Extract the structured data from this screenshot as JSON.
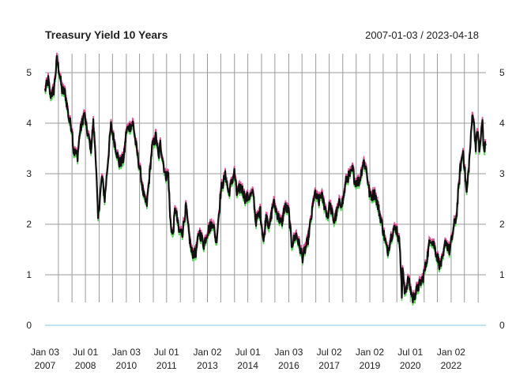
{
  "chart_data": {
    "type": "line",
    "title": "Treasury Yield 10 Years",
    "date_range": "2007-01-03 / 2023-04-18",
    "xlabel": "",
    "ylabel": "",
    "x_range": [
      "2007-01-03",
      "2023-04-18"
    ],
    "ylim": [
      -0.3,
      5.35
    ],
    "y_ticks": [
      0,
      1,
      2,
      3,
      4,
      5
    ],
    "x_ticks": [
      {
        "date": "2007-01-03",
        "line1": "Jan 03",
        "line2": "2007"
      },
      {
        "date": "2008-07-01",
        "line1": "Jul 01",
        "line2": "2008"
      },
      {
        "date": "2010-01-04",
        "line1": "Jan 03",
        "line2": "2010"
      },
      {
        "date": "2011-07-01",
        "line1": "Jul 01",
        "line2": "2011"
      },
      {
        "date": "2013-01-02",
        "line1": "Jan 02",
        "line2": "2013"
      },
      {
        "date": "2014-07-01",
        "line1": "Jul 01",
        "line2": "2014"
      },
      {
        "date": "2016-01-04",
        "line1": "Jan 03",
        "line2": "2016"
      },
      {
        "date": "2017-07-03",
        "line1": "Jul 02",
        "line2": "2017"
      },
      {
        "date": "2019-01-02",
        "line1": "Jan 02",
        "line2": "2019"
      },
      {
        "date": "2020-07-01",
        "line1": "Jul 01",
        "line2": "2020"
      },
      {
        "date": "2022-01-03",
        "line1": "Jan 02",
        "line2": "2022"
      }
    ],
    "grid": true,
    "grid_dates": [
      "2007-07-02",
      "2008-01-02",
      "2008-07-01",
      "2009-01-02",
      "2009-07-01",
      "2010-01-04",
      "2010-07-01",
      "2011-01-03",
      "2011-07-01",
      "2012-01-03",
      "2012-07-02",
      "2013-01-02",
      "2013-07-01",
      "2014-01-02",
      "2014-07-01",
      "2015-01-02",
      "2015-07-01",
      "2016-01-04",
      "2016-07-01",
      "2017-01-03",
      "2017-07-03",
      "2018-01-02",
      "2018-07-02",
      "2019-01-02",
      "2019-07-01",
      "2020-01-02",
      "2020-07-01",
      "2021-01-04",
      "2021-07-01",
      "2022-01-03",
      "2022-07-01",
      "2023-01-03"
    ],
    "series": [
      {
        "color": "#111111",
        "high_color": "#e0529a",
        "low_color": "#5cd65c",
        "points": [
          [
            "2007-01-03",
            4.65
          ],
          [
            "2007-02-15",
            4.85
          ],
          [
            "2007-03-15",
            4.55
          ],
          [
            "2007-05-01",
            4.65
          ],
          [
            "2007-06-12",
            5.25
          ],
          [
            "2007-07-10",
            5.05
          ],
          [
            "2007-08-20",
            4.65
          ],
          [
            "2007-10-01",
            4.6
          ],
          [
            "2007-11-26",
            4.05
          ],
          [
            "2008-01-02",
            3.9
          ],
          [
            "2008-01-23",
            3.45
          ],
          [
            "2008-03-17",
            3.35
          ],
          [
            "2008-04-15",
            3.8
          ],
          [
            "2008-06-16",
            4.2
          ],
          [
            "2008-07-15",
            3.9
          ],
          [
            "2008-09-15",
            3.5
          ],
          [
            "2008-10-15",
            4.0
          ],
          [
            "2008-11-15",
            3.4
          ],
          [
            "2008-12-18",
            2.1
          ],
          [
            "2009-01-10",
            2.5
          ],
          [
            "2009-02-10",
            2.95
          ],
          [
            "2009-03-18",
            2.5
          ],
          [
            "2009-06-10",
            3.95
          ],
          [
            "2009-08-01",
            3.6
          ],
          [
            "2009-10-01",
            3.2
          ],
          [
            "2009-12-01",
            3.3
          ],
          [
            "2010-01-04",
            3.85
          ],
          [
            "2010-04-05",
            4.0
          ],
          [
            "2010-05-15",
            3.55
          ],
          [
            "2010-07-15",
            3.0
          ],
          [
            "2010-08-31",
            2.5
          ],
          [
            "2010-10-08",
            2.4
          ],
          [
            "2010-12-15",
            3.5
          ],
          [
            "2011-02-08",
            3.75
          ],
          [
            "2011-03-15",
            3.3
          ],
          [
            "2011-04-08",
            3.6
          ],
          [
            "2011-06-15",
            2.95
          ],
          [
            "2011-07-25",
            3.0
          ],
          [
            "2011-08-18",
            2.1
          ],
          [
            "2011-09-22",
            1.75
          ],
          [
            "2011-10-27",
            2.35
          ],
          [
            "2011-12-15",
            1.85
          ],
          [
            "2012-02-01",
            1.85
          ],
          [
            "2012-03-19",
            2.35
          ],
          [
            "2012-04-15",
            1.95
          ],
          [
            "2012-06-01",
            1.45
          ],
          [
            "2012-07-24",
            1.4
          ],
          [
            "2012-09-15",
            1.85
          ],
          [
            "2012-11-15",
            1.6
          ],
          [
            "2013-01-02",
            1.85
          ],
          [
            "2013-03-15",
            2.05
          ],
          [
            "2013-05-02",
            1.65
          ],
          [
            "2013-07-05",
            2.7
          ],
          [
            "2013-09-05",
            2.98
          ],
          [
            "2013-10-15",
            2.6
          ],
          [
            "2013-12-31",
            3.03
          ],
          [
            "2014-02-03",
            2.6
          ],
          [
            "2014-04-01",
            2.75
          ],
          [
            "2014-06-01",
            2.5
          ],
          [
            "2014-07-15",
            2.55
          ],
          [
            "2014-09-15",
            2.6
          ],
          [
            "2014-10-15",
            2.05
          ],
          [
            "2014-12-15",
            2.25
          ],
          [
            "2015-01-30",
            1.65
          ],
          [
            "2015-03-10",
            2.25
          ],
          [
            "2015-04-15",
            1.9
          ],
          [
            "2015-06-10",
            2.45
          ],
          [
            "2015-08-15",
            2.15
          ],
          [
            "2015-10-01",
            2.0
          ],
          [
            "2015-11-10",
            2.35
          ],
          [
            "2016-01-04",
            2.25
          ],
          [
            "2016-02-11",
            1.6
          ],
          [
            "2016-04-15",
            1.8
          ],
          [
            "2016-07-08",
            1.35
          ],
          [
            "2016-09-15",
            1.65
          ],
          [
            "2016-11-15",
            2.25
          ],
          [
            "2016-12-15",
            2.6
          ],
          [
            "2017-02-15",
            2.45
          ],
          [
            "2017-03-15",
            2.6
          ],
          [
            "2017-06-15",
            2.15
          ],
          [
            "2017-07-10",
            2.4
          ],
          [
            "2017-09-07",
            2.05
          ],
          [
            "2017-11-15",
            2.4
          ],
          [
            "2018-01-02",
            2.45
          ],
          [
            "2018-02-21",
            2.9
          ],
          [
            "2018-04-25",
            3.0
          ],
          [
            "2018-05-17",
            3.1
          ],
          [
            "2018-06-15",
            2.85
          ],
          [
            "2018-08-15",
            2.85
          ],
          [
            "2018-10-08",
            3.25
          ],
          [
            "2018-11-15",
            3.1
          ],
          [
            "2019-01-03",
            2.55
          ],
          [
            "2019-03-15",
            2.6
          ],
          [
            "2019-06-01",
            2.1
          ],
          [
            "2019-08-28",
            1.45
          ],
          [
            "2019-10-15",
            1.75
          ],
          [
            "2019-11-15",
            1.9
          ],
          [
            "2020-01-02",
            1.9
          ],
          [
            "2020-02-15",
            1.55
          ],
          [
            "2020-03-09",
            0.55
          ],
          [
            "2020-03-18",
            1.15
          ],
          [
            "2020-04-15",
            0.65
          ],
          [
            "2020-06-05",
            0.9
          ],
          [
            "2020-08-04",
            0.52
          ],
          [
            "2020-10-15",
            0.75
          ],
          [
            "2020-12-15",
            0.92
          ],
          [
            "2021-01-15",
            1.1
          ],
          [
            "2021-03-31",
            1.74
          ],
          [
            "2021-05-15",
            1.6
          ],
          [
            "2021-08-04",
            1.18
          ],
          [
            "2021-09-15",
            1.3
          ],
          [
            "2021-10-21",
            1.68
          ],
          [
            "2021-12-15",
            1.45
          ],
          [
            "2022-01-03",
            1.63
          ],
          [
            "2022-02-15",
            2.0
          ],
          [
            "2022-03-15",
            2.15
          ],
          [
            "2022-05-06",
            3.1
          ],
          [
            "2022-06-14",
            3.45
          ],
          [
            "2022-08-01",
            2.6
          ],
          [
            "2022-09-15",
            3.45
          ],
          [
            "2022-10-21",
            4.25
          ],
          [
            "2022-12-01",
            3.55
          ],
          [
            "2022-12-30",
            3.88
          ],
          [
            "2023-01-18",
            3.4
          ],
          [
            "2023-03-02",
            4.05
          ],
          [
            "2023-03-20",
            3.45
          ],
          [
            "2023-04-18",
            3.58
          ]
        ]
      }
    ],
    "reference_line": {
      "value": 0,
      "color": "#9ad3e6"
    }
  }
}
